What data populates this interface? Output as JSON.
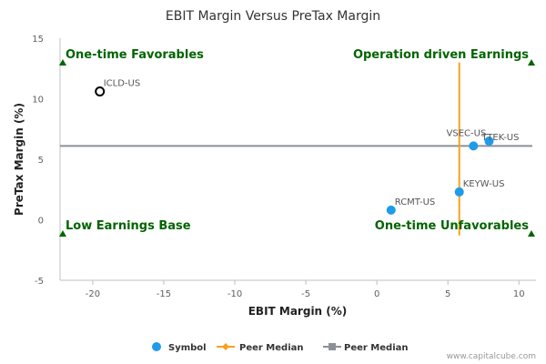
{
  "chart_data": {
    "type": "scatter",
    "title": "EBIT Margin Versus PreTax Margin",
    "xlabel": "EBIT Margin (%)",
    "ylabel": "PreTax Margin (%)",
    "xlim": [
      -22.3,
      11.2
    ],
    "ylim": [
      -5,
      15
    ],
    "xticks": [
      -20,
      -15,
      -10,
      -5,
      0,
      5,
      10
    ],
    "yticks": [
      -5,
      0,
      5,
      10,
      15
    ],
    "grid": false,
    "legend_position": "bottom",
    "points": [
      {
        "label": "ICLD-US",
        "x": -19.5,
        "y": 10.6,
        "style": "hollow"
      },
      {
        "label": "VSEC-US",
        "x": 6.8,
        "y": 6.1,
        "style": "filled"
      },
      {
        "label": "TTEK-US",
        "x": 7.9,
        "y": 6.5,
        "style": "filled"
      },
      {
        "label": "KEYW-US",
        "x": 5.8,
        "y": 2.3,
        "style": "filled"
      },
      {
        "label": "RCMT-US",
        "x": 1.0,
        "y": 0.8,
        "style": "filled"
      }
    ],
    "peer_median_x": 5.8,
    "peer_median_y": 6.1,
    "peer_median_x_range": [
      -1.3,
      13.0
    ],
    "quadrants": {
      "top_left": "One-time Favorables",
      "top_right": "Operation driven Earnings",
      "bottom_left": "Low Earnings Base",
      "bottom_right": "One-time Unfavorables"
    },
    "legend": [
      {
        "name": "Symbol",
        "marker": "circle",
        "color": "#1f9be8"
      },
      {
        "name": "Peer Median",
        "marker": "diamond-line",
        "color": "#f7a11a"
      },
      {
        "name": "Peer Median",
        "marker": "square-line",
        "color": "#8c9198"
      }
    ],
    "colors": {
      "symbol": "#1f9be8",
      "peer_median_vertical": "#f7a11a",
      "peer_median_horizontal": "#8c9198",
      "quadrant_text": "#006400",
      "hollow_point_stroke": "#000000"
    }
  },
  "credit": "www.capitalcube.com"
}
